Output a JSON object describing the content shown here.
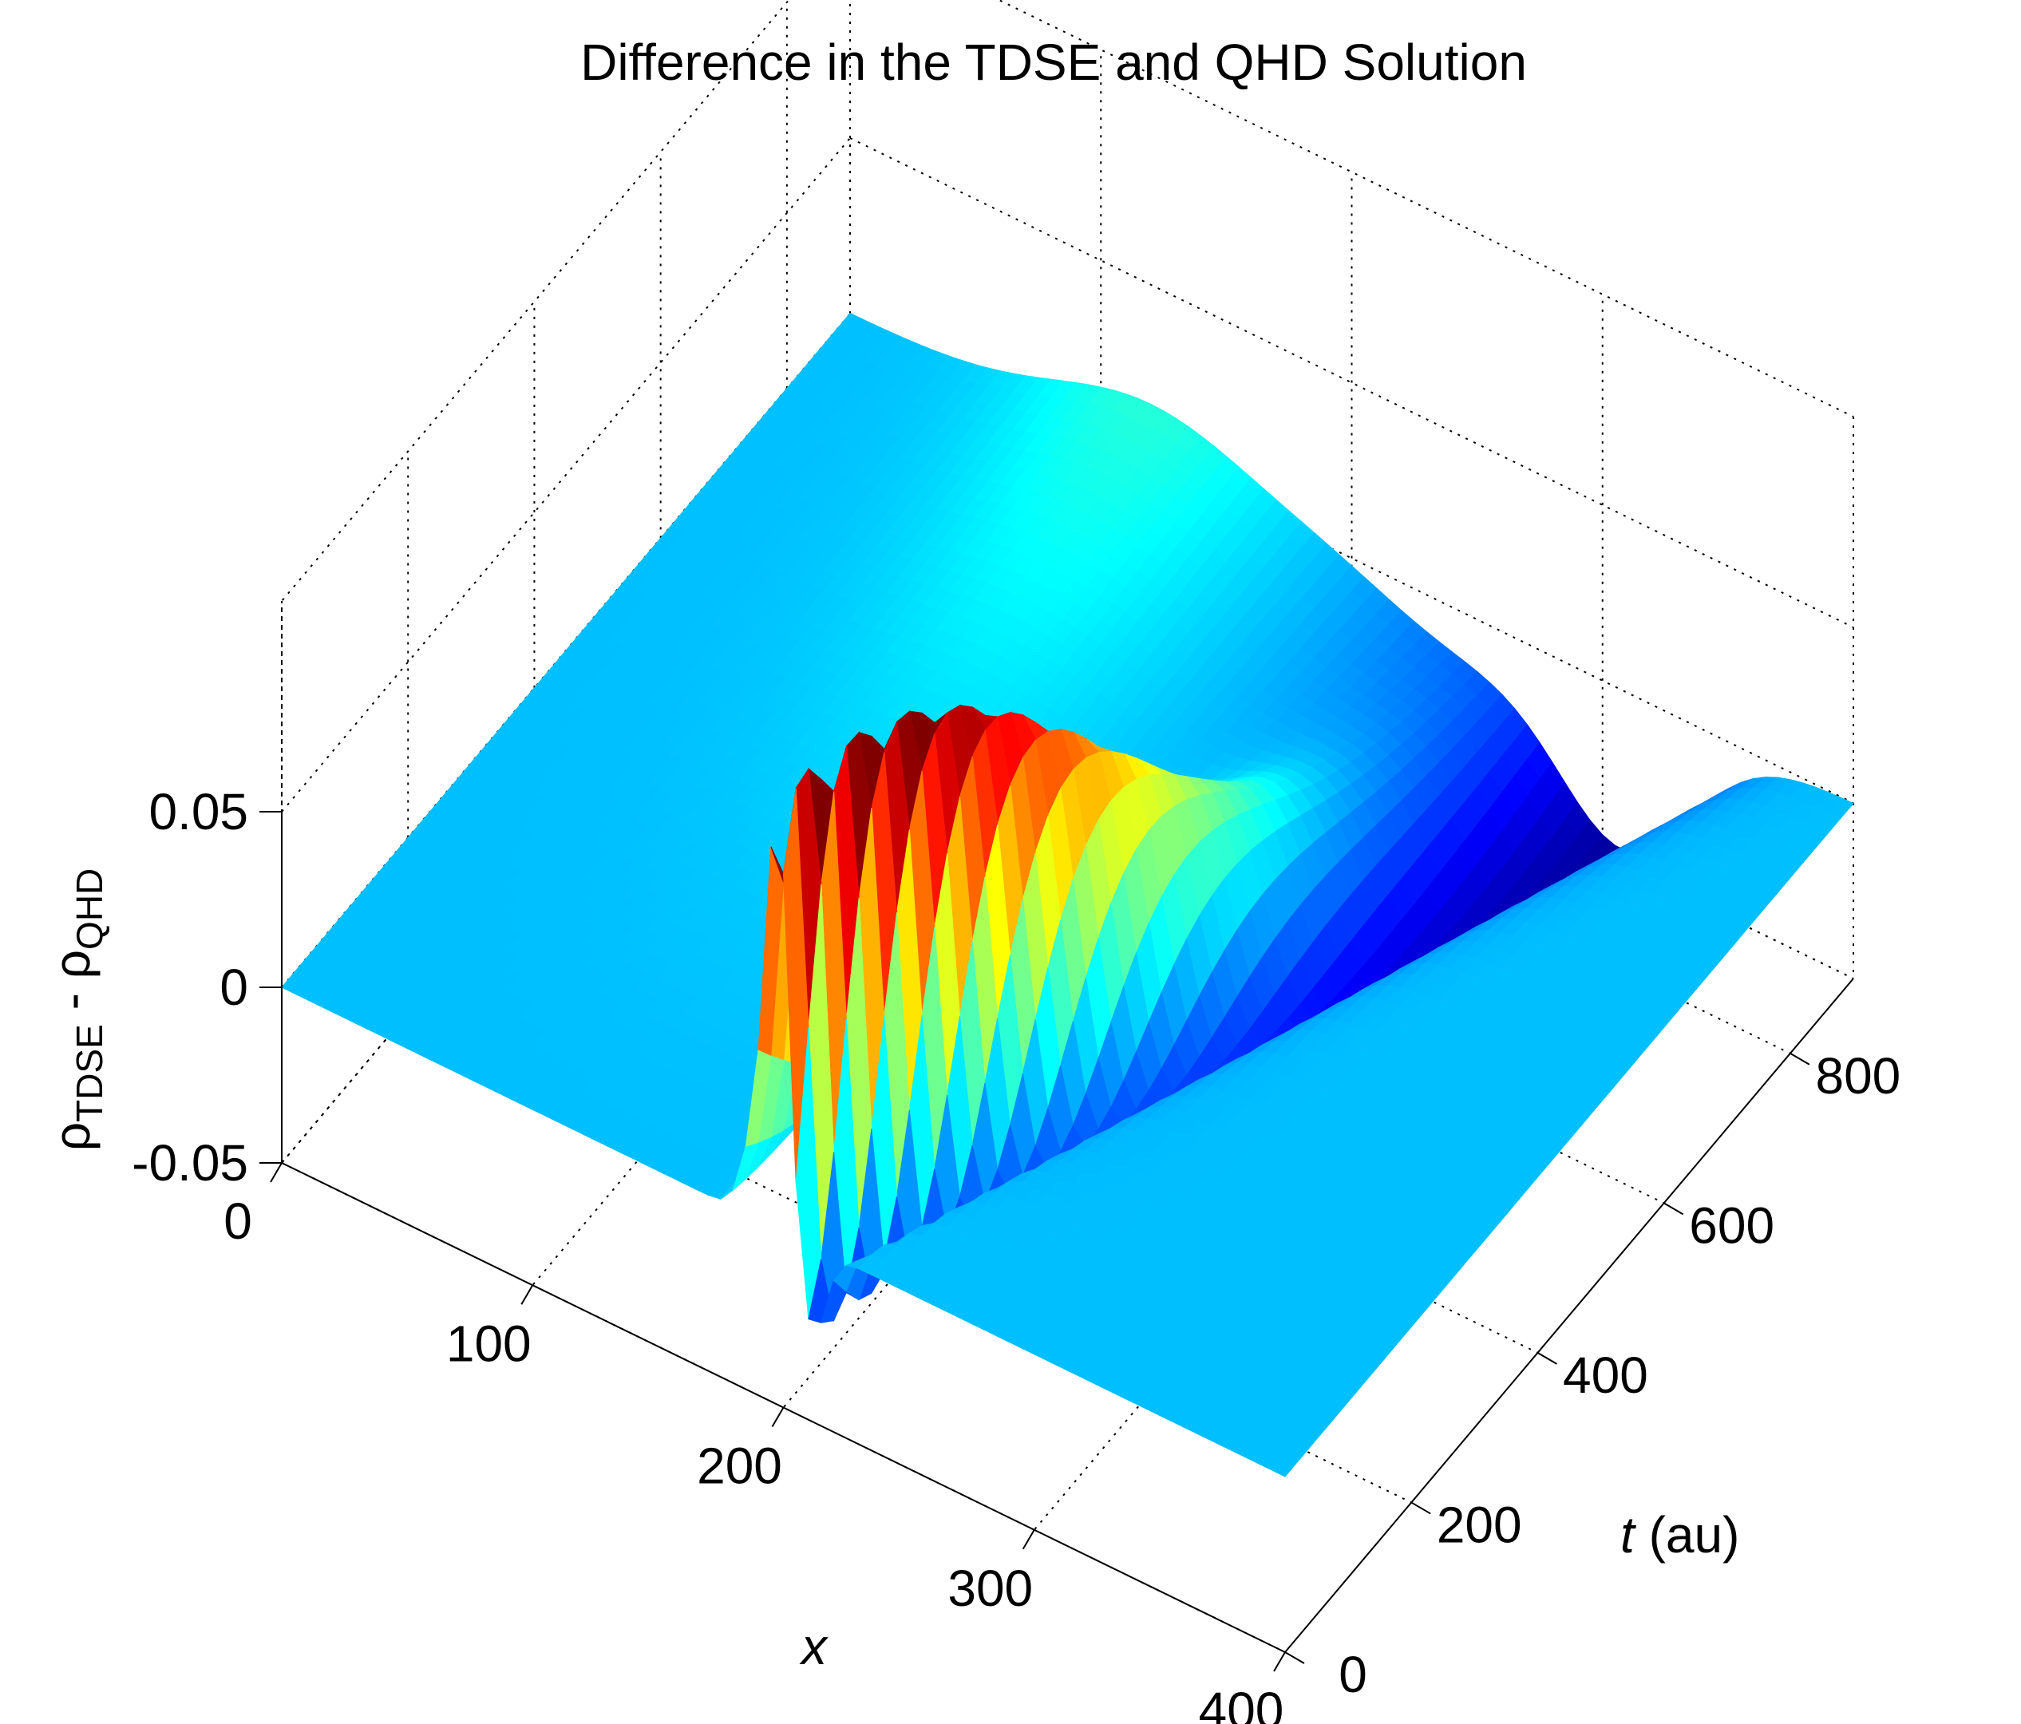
{
  "chart_data": {
    "type": "surface",
    "title": "Difference in the TDSE and QHD Solution",
    "xlabel": "x",
    "ylabel_italic": "t",
    "ylabel_rest": " (au)",
    "zlabel_main": "ρ",
    "zlabel_sub1": "TDSE",
    "zlabel_mid": " - ρ",
    "zlabel_sub2": "QHD",
    "x_ticks": [
      "0",
      "100",
      "200",
      "300",
      "400"
    ],
    "t_ticks": [
      "0",
      "200",
      "400",
      "600",
      "800"
    ],
    "z_ticks": [
      "-0.05",
      "0",
      "0.05"
    ],
    "xlim": [
      0,
      400
    ],
    "tlim": [
      0,
      900
    ],
    "zlim": [
      -0.05,
      0.11
    ],
    "colormap": "jet",
    "peak_value": 0.11,
    "peak_location": {
      "x": 200,
      "t": 0
    },
    "trough_value": -0.05,
    "trough_location": {
      "x": 290,
      "t": 900
    },
    "baseline_color": "#73ff87"
  }
}
